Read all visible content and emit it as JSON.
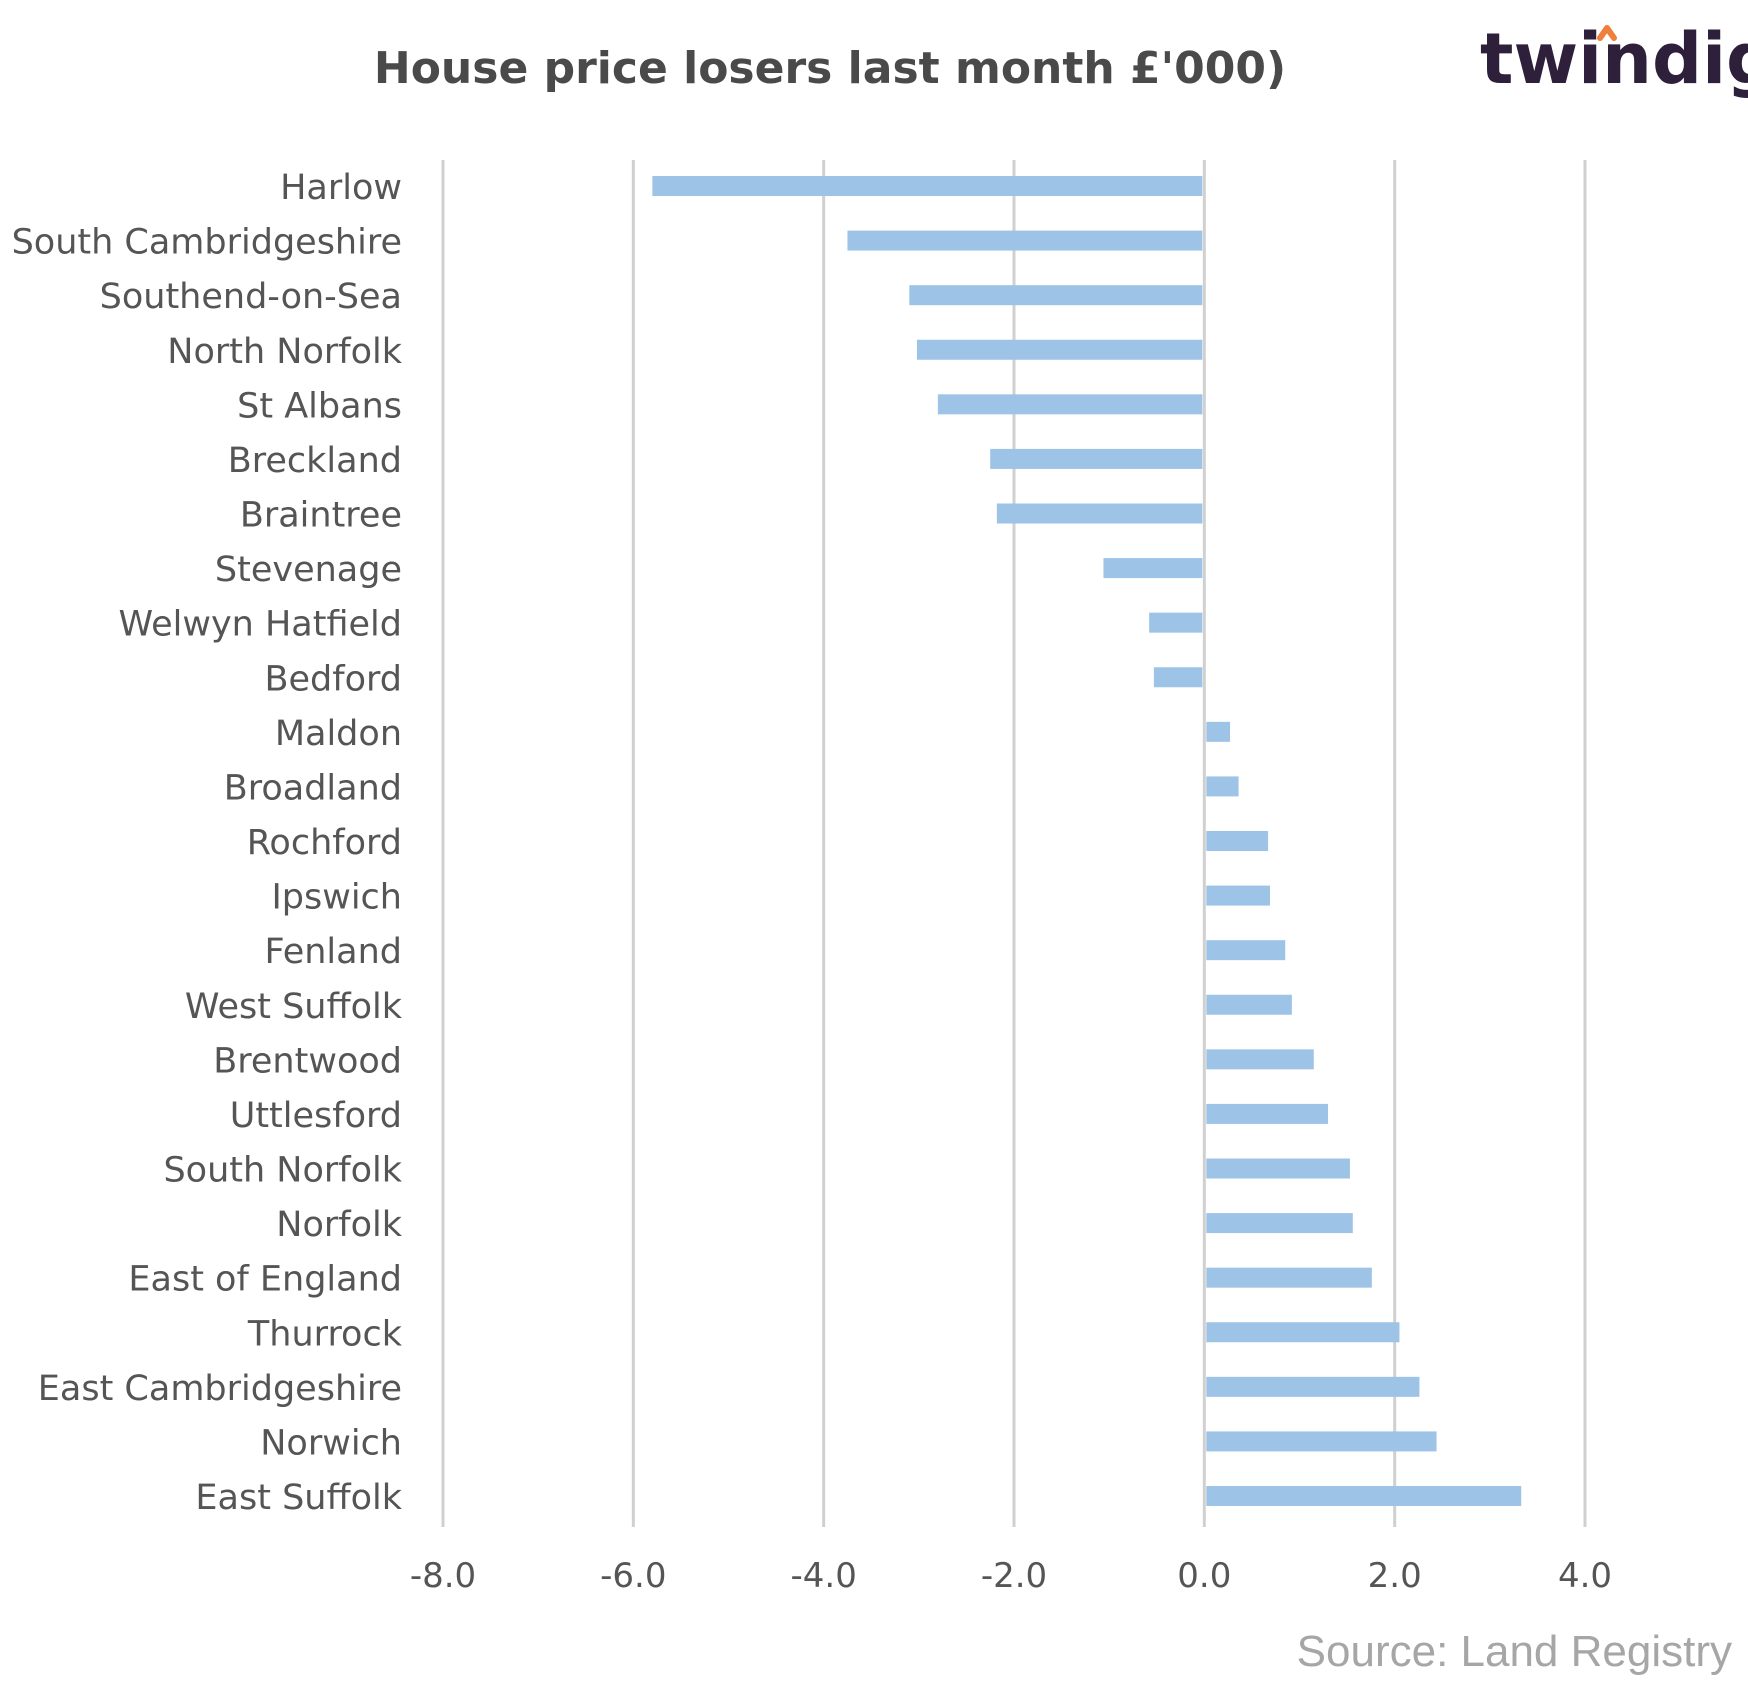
{
  "brand": {
    "name": "twindig",
    "accent_color": "#f07f3c",
    "text_color": "#2e1f3a"
  },
  "source": "Source: Land Registry",
  "chart_data": {
    "type": "bar",
    "orientation": "horizontal",
    "title": "House price losers last month £'000)",
    "categories": [
      "Harlow",
      "South Cambridgeshire",
      "Southend-on-Sea",
      "North Norfolk",
      "St Albans",
      "Breckland",
      "Braintree",
      "Stevenage",
      "Welwyn Hatfield",
      "Bedford",
      "Maldon",
      "Broadland",
      "Rochford",
      "Ipswich",
      "Fenland",
      "West Suffolk",
      "Brentwood",
      "Uttlesford",
      "South Norfolk",
      "Norfolk",
      "East of England",
      "Thurrock",
      "East Cambridgeshire",
      "Norwich",
      "East Suffolk"
    ],
    "values": [
      -5.8,
      -3.75,
      -3.1,
      -3.02,
      -2.8,
      -2.25,
      -2.18,
      -1.06,
      -0.58,
      -0.53,
      0.27,
      0.36,
      0.67,
      0.69,
      0.85,
      0.92,
      1.15,
      1.3,
      1.53,
      1.56,
      1.76,
      2.05,
      2.26,
      2.44,
      3.33
    ],
    "xlim": [
      -8,
      4
    ],
    "xticks": [
      "-8.0",
      "-6.0",
      "-4.0",
      "-2.0",
      "0.0",
      "2.0",
      "4.0"
    ],
    "xtick_values": [
      -8,
      -6,
      -4,
      -2,
      0,
      2,
      4
    ],
    "grid": true,
    "bar_color": "#9dc3e6",
    "grid_color": "#d0d0d0"
  }
}
